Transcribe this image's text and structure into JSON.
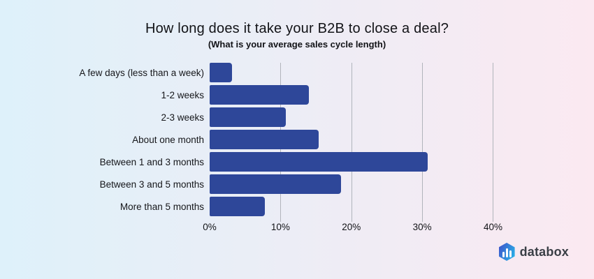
{
  "header": {
    "title": "How long does it take your B2B to close a deal?",
    "subtitle": "(What is your average sales cycle length)"
  },
  "chart_data": {
    "type": "bar",
    "orientation": "horizontal",
    "title": "How long does it take your B2B to close a deal?",
    "subtitle": "(What is your average sales cycle length)",
    "categories": [
      "A few days (less than a week)",
      "1-2 weeks",
      "2-3 weeks",
      "About one month",
      "Between 1 and 3 months",
      "Between 3 and 5 months",
      "More than 5 months"
    ],
    "values": [
      3.2,
      14.0,
      10.8,
      15.4,
      30.8,
      18.5,
      7.8
    ],
    "value_unit": "%",
    "xlabel": "",
    "ylabel": "",
    "xlim": [
      0,
      44
    ],
    "x_ticks": [
      {
        "label": "0%",
        "value": 0
      },
      {
        "label": "10%",
        "value": 10
      },
      {
        "label": "20%",
        "value": 20
      },
      {
        "label": "30%",
        "value": 30
      },
      {
        "label": "40%",
        "value": 40
      }
    ],
    "grid": true,
    "legend": false,
    "bar_color": "#2e4799",
    "gridline_color": "#b1b4bb"
  },
  "colors": {
    "background_left": "#def1fa",
    "background_right": "#fbe9f1",
    "bar": "#2e4799",
    "gridline": "#b1b4bb",
    "text": "#121317",
    "brand_text": "#3a3f46",
    "logo_gradient_start": "#3e55cb",
    "logo_gradient_end": "#27b6e9"
  },
  "footer": {
    "brand": "databox",
    "logo_icon": "databox-hexagon-bars-icon"
  }
}
